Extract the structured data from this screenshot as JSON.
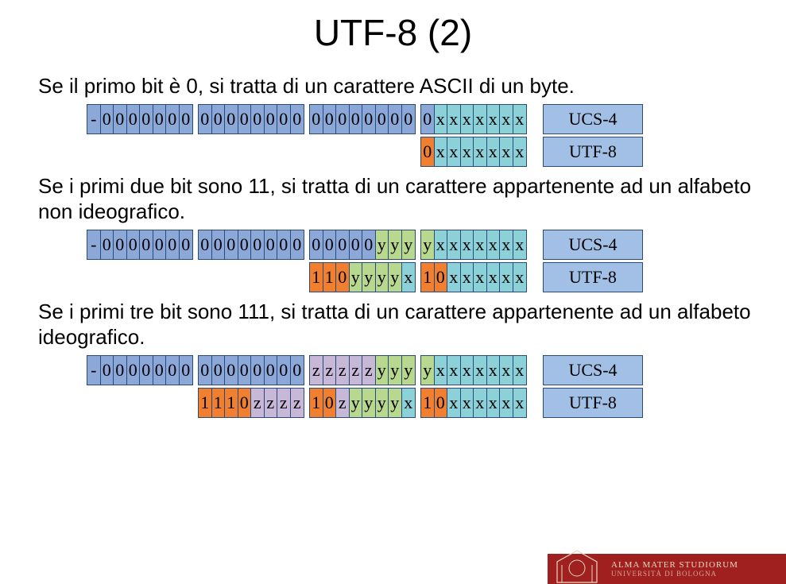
{
  "title": "UTF-8 (2)",
  "colors": {
    "blue": "#8ca8d8",
    "teal": "#8cd0d8",
    "orange": "#f08030",
    "green": "#b8d890",
    "purple": "#c8b8d8",
    "labelBg": "#a2c0e6",
    "border": "#2a4a7a",
    "footerBg": "#a02020",
    "footerText": "#e8d8c0"
  },
  "labels": {
    "ucs4": "UCS-4",
    "utf8": "UTF-8"
  },
  "sections": [
    {
      "text": "Se il primo bit è 0, si tratta di un carattere ASCII di un byte.",
      "rows": [
        {
          "label": "ucs4",
          "bytes": [
            [
              [
                "-",
                "blue"
              ],
              [
                "0",
                "blue"
              ],
              [
                "0",
                "blue"
              ],
              [
                "0",
                "blue"
              ],
              [
                "0",
                "blue"
              ],
              [
                "0",
                "blue"
              ],
              [
                "0",
                "blue"
              ],
              [
                "0",
                "blue"
              ]
            ],
            [
              [
                "0",
                "blue"
              ],
              [
                "0",
                "blue"
              ],
              [
                "0",
                "blue"
              ],
              [
                "0",
                "blue"
              ],
              [
                "0",
                "blue"
              ],
              [
                "0",
                "blue"
              ],
              [
                "0",
                "blue"
              ],
              [
                "0",
                "blue"
              ]
            ],
            [
              [
                "0",
                "blue"
              ],
              [
                "0",
                "blue"
              ],
              [
                "0",
                "blue"
              ],
              [
                "0",
                "blue"
              ],
              [
                "0",
                "blue"
              ],
              [
                "0",
                "blue"
              ],
              [
                "0",
                "blue"
              ],
              [
                "0",
                "blue"
              ]
            ],
            [
              [
                "0",
                "blue"
              ],
              [
                "x",
                "teal"
              ],
              [
                "x",
                "teal"
              ],
              [
                "x",
                "teal"
              ],
              [
                "x",
                "teal"
              ],
              [
                "x",
                "teal"
              ],
              [
                "x",
                "teal"
              ],
              [
                "x",
                "teal"
              ]
            ]
          ]
        },
        {
          "label": "utf8",
          "bytes": [
            [
              [
                "0",
                "orange"
              ],
              [
                "x",
                "teal"
              ],
              [
                "x",
                "teal"
              ],
              [
                "x",
                "teal"
              ],
              [
                "x",
                "teal"
              ],
              [
                "x",
                "teal"
              ],
              [
                "x",
                "teal"
              ],
              [
                "x",
                "teal"
              ]
            ]
          ]
        }
      ]
    },
    {
      "text": "Se i primi due bit sono 11, si tratta di un carattere appartenente ad un alfabeto non ideografico.",
      "rows": [
        {
          "label": "ucs4",
          "bytes": [
            [
              [
                "-",
                "blue"
              ],
              [
                "0",
                "blue"
              ],
              [
                "0",
                "blue"
              ],
              [
                "0",
                "blue"
              ],
              [
                "0",
                "blue"
              ],
              [
                "0",
                "blue"
              ],
              [
                "0",
                "blue"
              ],
              [
                "0",
                "blue"
              ]
            ],
            [
              [
                "0",
                "blue"
              ],
              [
                "0",
                "blue"
              ],
              [
                "0",
                "blue"
              ],
              [
                "0",
                "blue"
              ],
              [
                "0",
                "blue"
              ],
              [
                "0",
                "blue"
              ],
              [
                "0",
                "blue"
              ],
              [
                "0",
                "blue"
              ]
            ],
            [
              [
                "0",
                "blue"
              ],
              [
                "0",
                "blue"
              ],
              [
                "0",
                "blue"
              ],
              [
                "0",
                "blue"
              ],
              [
                "0",
                "blue"
              ],
              [
                "y",
                "green"
              ],
              [
                "y",
                "green"
              ],
              [
                "y",
                "green"
              ]
            ],
            [
              [
                "y",
                "green"
              ],
              [
                "x",
                "teal"
              ],
              [
                "x",
                "teal"
              ],
              [
                "x",
                "teal"
              ],
              [
                "x",
                "teal"
              ],
              [
                "x",
                "teal"
              ],
              [
                "x",
                "teal"
              ],
              [
                "x",
                "teal"
              ]
            ]
          ]
        },
        {
          "label": "utf8",
          "bytes": [
            [
              [
                "1",
                "orange"
              ],
              [
                "1",
                "orange"
              ],
              [
                "0",
                "orange"
              ],
              [
                "y",
                "green"
              ],
              [
                "y",
                "green"
              ],
              [
                "y",
                "green"
              ],
              [
                "y",
                "green"
              ],
              [
                "x",
                "teal"
              ]
            ],
            [
              [
                "1",
                "orange"
              ],
              [
                "0",
                "orange"
              ],
              [
                "x",
                "teal"
              ],
              [
                "x",
                "teal"
              ],
              [
                "x",
                "teal"
              ],
              [
                "x",
                "teal"
              ],
              [
                "x",
                "teal"
              ],
              [
                "x",
                "teal"
              ]
            ]
          ]
        }
      ]
    },
    {
      "text": "Se i primi tre bit sono 111, si tratta di un carattere appartenente ad un alfabeto ideografico.",
      "rows": [
        {
          "label": "ucs4",
          "bytes": [
            [
              [
                "-",
                "blue"
              ],
              [
                "0",
                "blue"
              ],
              [
                "0",
                "blue"
              ],
              [
                "0",
                "blue"
              ],
              [
                "0",
                "blue"
              ],
              [
                "0",
                "blue"
              ],
              [
                "0",
                "blue"
              ],
              [
                "0",
                "blue"
              ]
            ],
            [
              [
                "0",
                "blue"
              ],
              [
                "0",
                "blue"
              ],
              [
                "0",
                "blue"
              ],
              [
                "0",
                "blue"
              ],
              [
                "0",
                "blue"
              ],
              [
                "0",
                "blue"
              ],
              [
                "0",
                "blue"
              ],
              [
                "0",
                "blue"
              ]
            ],
            [
              [
                "z",
                "purple"
              ],
              [
                "z",
                "purple"
              ],
              [
                "z",
                "purple"
              ],
              [
                "z",
                "purple"
              ],
              [
                "z",
                "purple"
              ],
              [
                "y",
                "green"
              ],
              [
                "y",
                "green"
              ],
              [
                "y",
                "green"
              ]
            ],
            [
              [
                "y",
                "green"
              ],
              [
                "x",
                "teal"
              ],
              [
                "x",
                "teal"
              ],
              [
                "x",
                "teal"
              ],
              [
                "x",
                "teal"
              ],
              [
                "x",
                "teal"
              ],
              [
                "x",
                "teal"
              ],
              [
                "x",
                "teal"
              ]
            ]
          ]
        },
        {
          "label": "utf8",
          "bytes": [
            [
              [
                "1",
                "orange"
              ],
              [
                "1",
                "orange"
              ],
              [
                "1",
                "orange"
              ],
              [
                "0",
                "orange"
              ],
              [
                "z",
                "purple"
              ],
              [
                "z",
                "purple"
              ],
              [
                "z",
                "purple"
              ],
              [
                "z",
                "purple"
              ]
            ],
            [
              [
                "1",
                "orange"
              ],
              [
                "0",
                "orange"
              ],
              [
                "z",
                "purple"
              ],
              [
                "y",
                "green"
              ],
              [
                "y",
                "green"
              ],
              [
                "y",
                "green"
              ],
              [
                "y",
                "green"
              ],
              [
                "x",
                "teal"
              ]
            ],
            [
              [
                "1",
                "orange"
              ],
              [
                "0",
                "orange"
              ],
              [
                "x",
                "teal"
              ],
              [
                "x",
                "teal"
              ],
              [
                "x",
                "teal"
              ],
              [
                "x",
                "teal"
              ],
              [
                "x",
                "teal"
              ],
              [
                "x",
                "teal"
              ]
            ]
          ]
        }
      ]
    }
  ],
  "footer": {
    "line1": "ALMA MATER STUDIORUM",
    "line2": "UNIVERSITÀ DI BOLOGNA"
  }
}
